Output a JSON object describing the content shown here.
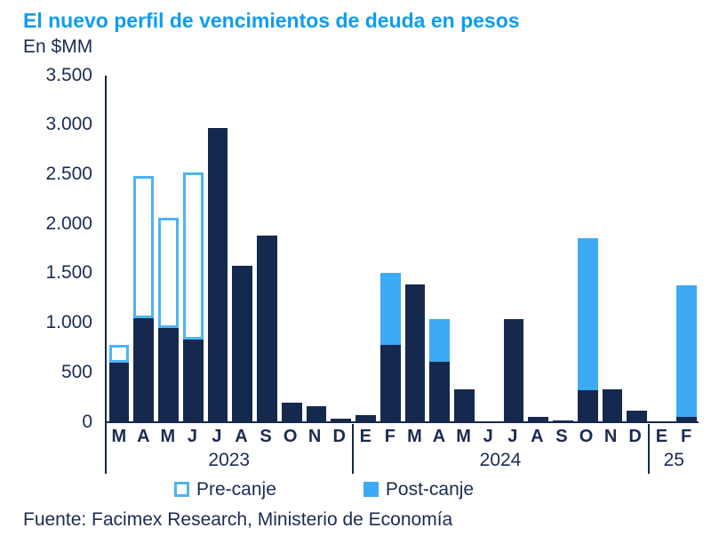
{
  "title": "El nuevo perfil de vencimientos de deuda en pesos",
  "subtitle": "En $MM",
  "source": "Fuente: Facimex Research, Ministerio de Economía",
  "legend": {
    "pre": "Pre-canje",
    "post": "Post-canje"
  },
  "colors": {
    "title_blue": "#0d9cf2",
    "navy": "#15294f",
    "light_blue": "#3ea9f4",
    "pre_border": "#4db4f5",
    "background": "#ffffff"
  },
  "chart_data": {
    "type": "bar",
    "stacked": true,
    "title": "El nuevo perfil de vencimientos de deuda en pesos",
    "ylabel": "En $MM",
    "ylim": [
      0,
      3500
    ],
    "yticks": [
      "3.500",
      "3.000",
      "2.500",
      "2.000",
      "1.500",
      "1.000",
      "500",
      "0"
    ],
    "grid": false,
    "legend_position": "bottom",
    "series_meaning": {
      "navy": "vencimientos (base, azul oscuro)",
      "pre": "total con Pre-canje (barra con borde celeste, relleno blanco)",
      "post": "total con Post-canje (barra celeste sólida)"
    },
    "groups": [
      {
        "year": "2023",
        "bars": [
          {
            "m": "M",
            "navy": 600,
            "pre": 780
          },
          {
            "m": "A",
            "navy": 1050,
            "pre": 2480
          },
          {
            "m": "M",
            "navy": 950,
            "pre": 2060
          },
          {
            "m": "J",
            "navy": 830,
            "pre": 2520
          },
          {
            "m": "J",
            "navy": 2970
          },
          {
            "m": "A",
            "navy": 1580
          },
          {
            "m": "S",
            "navy": 1880
          },
          {
            "m": "O",
            "navy": 190
          },
          {
            "m": "N",
            "navy": 160
          },
          {
            "m": "D",
            "navy": 30
          }
        ]
      },
      {
        "year": "2024",
        "bars": [
          {
            "m": "E",
            "navy": 70
          },
          {
            "m": "F",
            "navy": 780,
            "post": 1500
          },
          {
            "m": "M",
            "navy": 1390
          },
          {
            "m": "A",
            "navy": 610,
            "post": 1040
          },
          {
            "m": "M",
            "navy": 330
          },
          {
            "m": "J",
            "navy": 0
          },
          {
            "m": "J",
            "navy": 1040
          },
          {
            "m": "A",
            "navy": 50
          },
          {
            "m": "S",
            "navy": 15
          },
          {
            "m": "O",
            "navy": 320,
            "post": 1850
          },
          {
            "m": "N",
            "navy": 330
          },
          {
            "m": "D",
            "navy": 110
          }
        ]
      },
      {
        "year": "25",
        "bars": [
          {
            "m": "E",
            "navy": 0
          },
          {
            "m": "F",
            "navy": 50,
            "post": 1380
          }
        ]
      }
    ]
  }
}
